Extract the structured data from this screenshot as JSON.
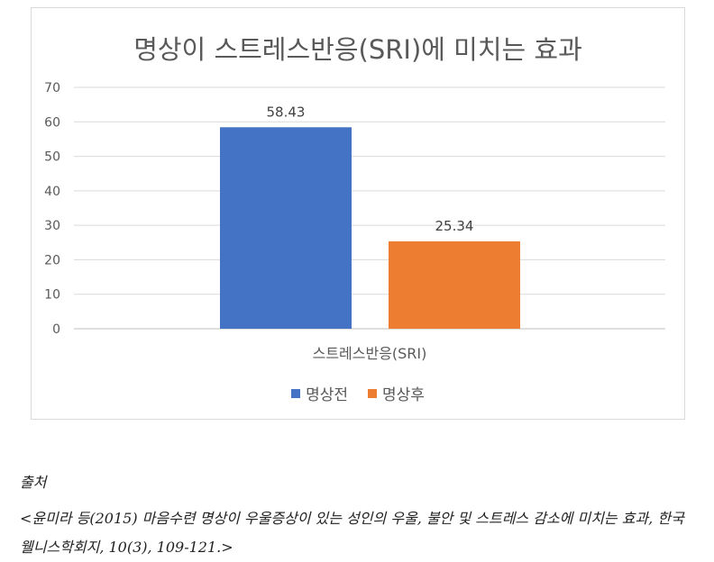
{
  "chart_data": {
    "type": "bar",
    "title": "명상이 스트레스반응(SRI)에 미치는 효과",
    "categories": [
      "스트레스반응(SRI)"
    ],
    "series": [
      {
        "name": "명상전",
        "values": [
          58.43
        ],
        "color": "#4472c4"
      },
      {
        "name": "명상후",
        "values": [
          25.34
        ],
        "color": "#ed7d31"
      }
    ],
    "data_labels": [
      "58.43",
      "25.34"
    ],
    "ylim": [
      0,
      70
    ],
    "yticks": [
      0,
      10,
      20,
      30,
      40,
      50,
      60,
      70
    ],
    "grid": true,
    "legend_position": "bottom"
  },
  "caption": {
    "label": "출처",
    "citation": "<윤미라 등(2015) 마음수련 명상이 우울증상이 있는 성인의 우울, 불안 및 스트레스 감소에 미치는 효과, 한국웰니스학회지, 10(3), 109-121.>"
  }
}
